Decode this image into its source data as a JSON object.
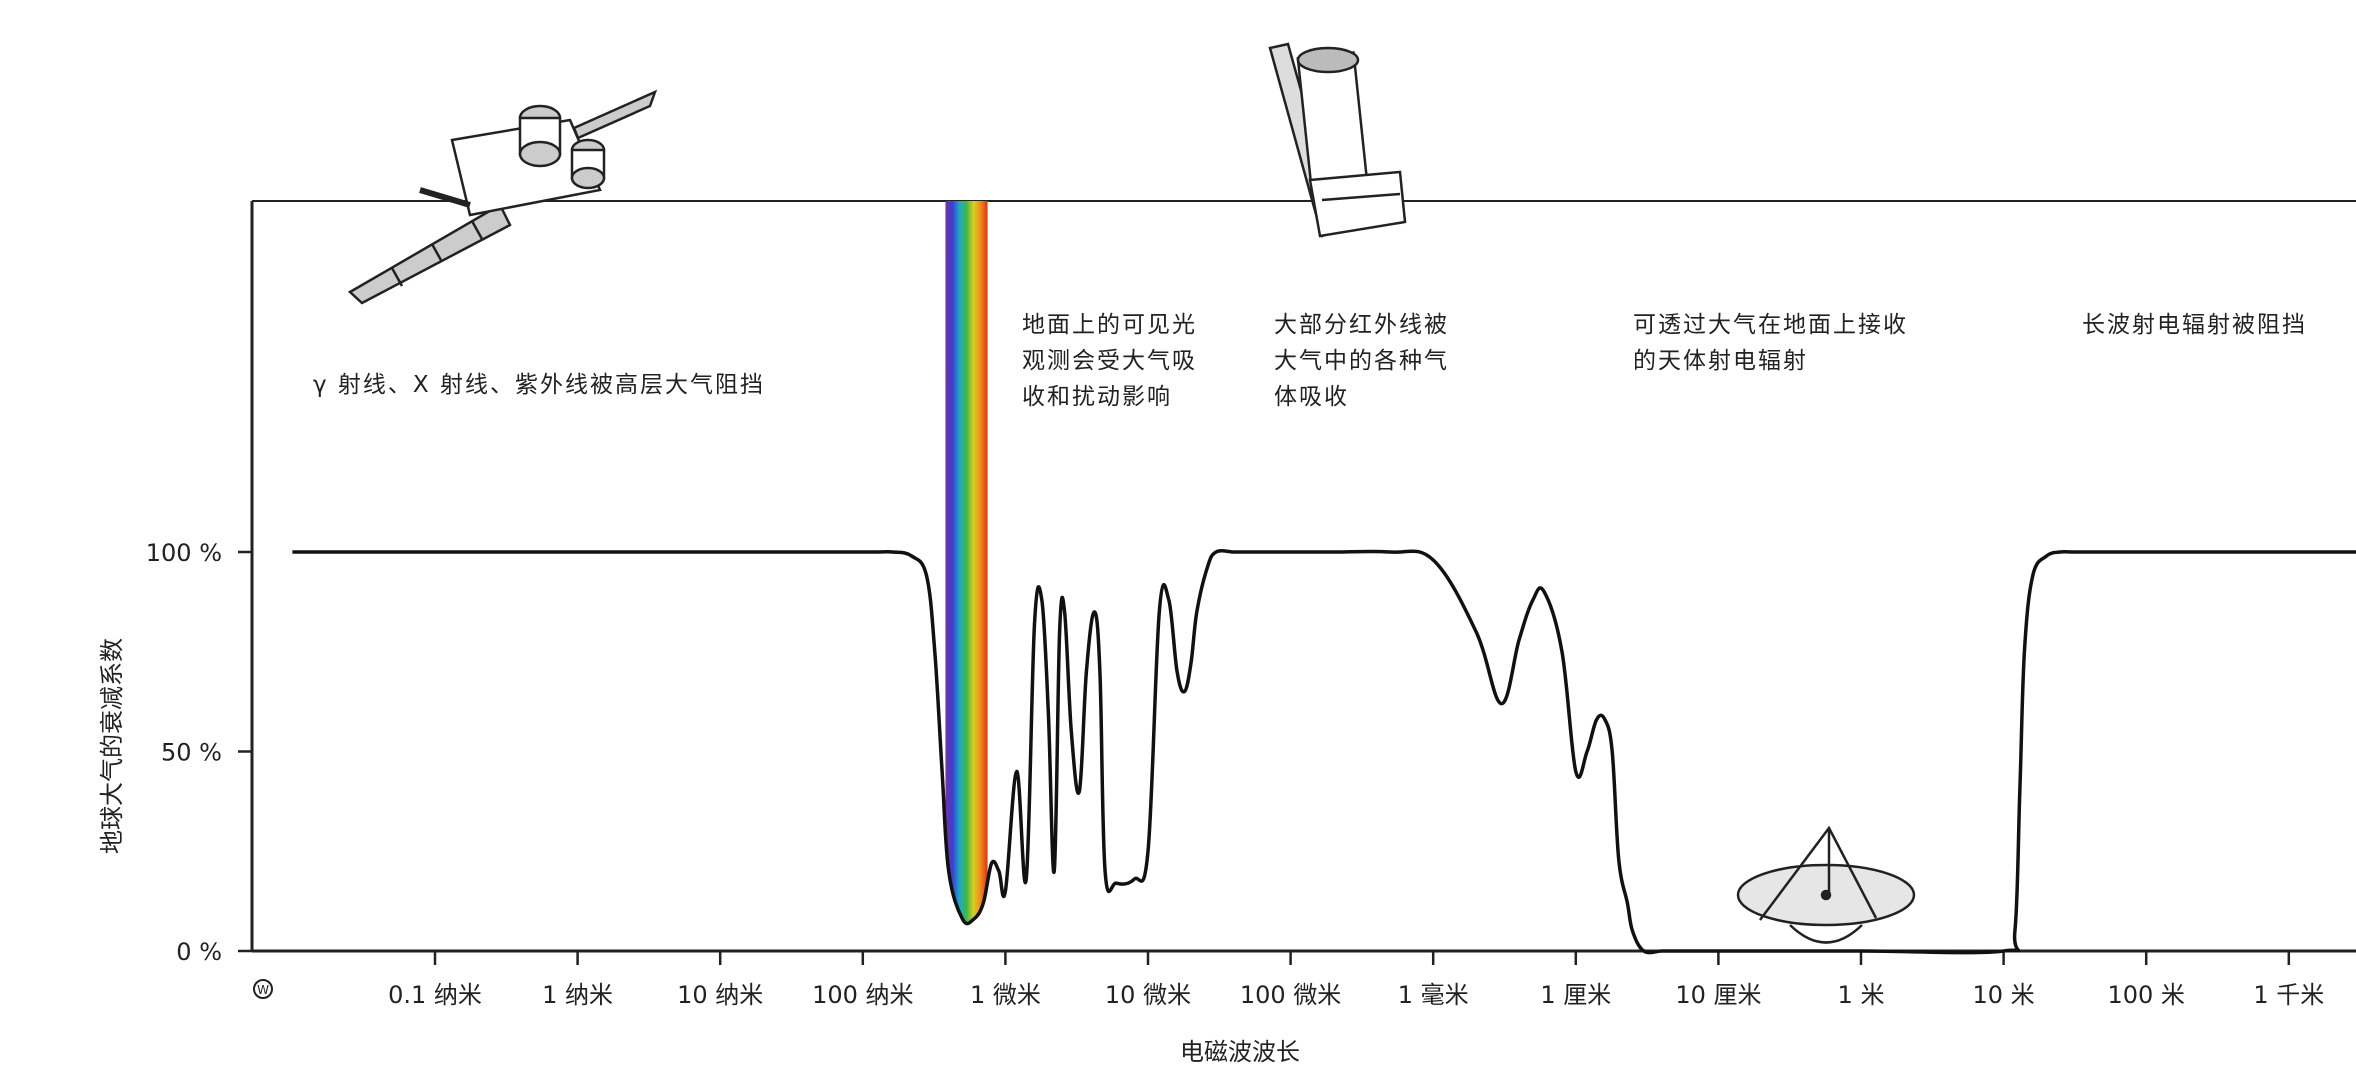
{
  "chart_data": {
    "type": "line",
    "title": "",
    "xlabel": "电磁波波长",
    "ylabel": "地球大气的衰减系数",
    "x_scale": "log",
    "x_unit": "m",
    "xlim": [
      1e-11,
      10000
    ],
    "ylim": [
      0,
      100
    ],
    "x_tick_values": [
      1e-10,
      1e-09,
      1e-08,
      1e-07,
      1e-06,
      1e-05,
      0.0001,
      0.001,
      0.01,
      0.1,
      1,
      10,
      100,
      1000
    ],
    "x_tick_labels": [
      "0.1 纳米",
      "1 纳米",
      "10 纳米",
      "100 纳米",
      "1 微米",
      "10 微米",
      "100 微米",
      "1 毫米",
      "1 厘米",
      "10 厘米",
      "1 米",
      "10 米",
      "100 米",
      "1 千米"
    ],
    "y_tick_values": [
      0,
      50,
      100
    ],
    "y_tick_labels": [
      "0 %",
      "50 %",
      "100 %"
    ],
    "grid": false,
    "annotations": [
      {
        "lines": [
          "γ 射线、X 射线、紫外线被高层大气阻挡"
        ]
      },
      {
        "lines": [
          "地面上的可见光",
          "观测会受大气吸",
          "收和扰动影响"
        ]
      },
      {
        "lines": [
          "大部分红外线被",
          "大气中的各种气",
          "体吸收"
        ]
      },
      {
        "lines": [
          "可透过大气在地面上接收",
          "的天体射电辐射"
        ]
      },
      {
        "lines": [
          "长波射电辐射被阻挡"
        ]
      }
    ],
    "visible_band": {
      "x_start": 3.8e-07,
      "x_end": 7.5e-07,
      "colors": [
        "#7a2ea0",
        "#3a3fd0",
        "#1fa8c8",
        "#3cb84a",
        "#d8d020",
        "#f08a1a",
        "#d8321c"
      ]
    },
    "series": [
      {
        "x": [
          1e-11,
          1e-10,
          1e-09,
          1e-08,
          1e-07,
          1.6e-07,
          2.2e-07,
          2.8e-07,
          3.2e-07,
          3.6e-07,
          4e-07,
          5e-07,
          6e-07,
          7e-07,
          8e-07,
          9e-07,
          1e-06,
          1.2e-06,
          1.4e-06,
          1.6e-06,
          1.8e-06,
          2e-06,
          2.2e-06,
          2.4e-06,
          2.6e-06,
          2.9e-06,
          3.3e-06,
          3.7e-06,
          4.2e-06,
          4.6e-06,
          5e-06,
          6e-06,
          8e-06,
          1e-05,
          1.2e-05,
          1.4e-05,
          1.6e-05,
          1.8e-05,
          2e-05,
          2.2e-05,
          2.6e-05,
          3e-05,
          4e-05,
          5e-05,
          7e-05,
          0.0001,
          0.0002,
          0.0005,
          0.001,
          0.002,
          0.003,
          0.004,
          0.005,
          0.006,
          0.008,
          0.01,
          0.012,
          0.014,
          0.016,
          0.018,
          0.02,
          0.023,
          0.025,
          0.03,
          0.04,
          0.05,
          0.1,
          1,
          10,
          12,
          13,
          14,
          16,
          20,
          25,
          30,
          50,
          100,
          1000,
          10000
        ],
        "y": [
          100,
          100,
          100,
          100,
          100,
          100,
          99,
          94,
          75,
          45,
          20,
          8,
          8,
          12,
          22,
          20,
          15,
          45,
          18,
          82,
          88,
          60,
          20,
          80,
          85,
          55,
          40,
          70,
          85,
          70,
          20,
          17,
          18,
          25,
          85,
          88,
          70,
          65,
          72,
          85,
          96,
          100,
          100,
          100,
          100,
          100,
          100,
          100,
          98,
          80,
          62,
          78,
          88,
          90,
          75,
          45,
          50,
          58,
          58,
          50,
          23,
          12,
          5,
          0,
          0,
          0,
          0,
          0,
          0,
          5,
          40,
          75,
          94,
          99,
          100,
          100,
          100,
          100,
          100,
          100
        ]
      }
    ]
  }
}
